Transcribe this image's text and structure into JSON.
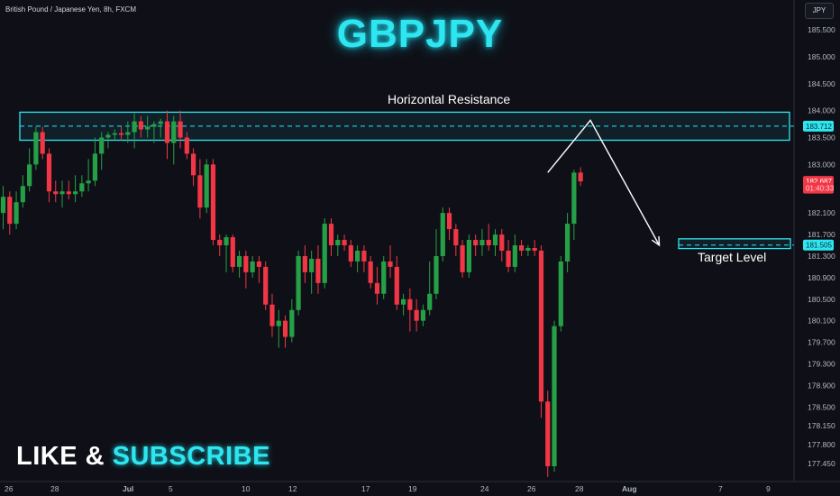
{
  "header": {
    "symbol_line": "British Pound / Japanese Yen, 8h, FXCM",
    "title": "GBPJPY",
    "currency_badge": "JPY"
  },
  "call_to_action": {
    "word1": "LIKE &",
    "word2": "SUBSCRIBE"
  },
  "annotations": {
    "resistance_label": "Horizontal Resistance",
    "target_label": "Target Level"
  },
  "colors": {
    "up": "#26a046",
    "down": "#f23645",
    "accent": "#2ee6f0",
    "background": "#0f1017",
    "axis_text": "#b2b5be"
  },
  "chart_data": {
    "type": "candlestick",
    "symbol": "GBPJPY",
    "timeframe": "8h",
    "y_axis": {
      "ticks": [
        "185.500",
        "185.000",
        "184.500",
        "184.000",
        "183.500",
        "183.000",
        "182.100",
        "181.700",
        "181.300",
        "180.900",
        "180.500",
        "180.100",
        "179.700",
        "179.300",
        "178.900",
        "178.500",
        "178.150",
        "177.800",
        "177.450"
      ],
      "tick_values": [
        185.5,
        185.0,
        184.5,
        184.0,
        183.5,
        183.0,
        182.1,
        181.7,
        181.3,
        180.9,
        180.5,
        180.1,
        179.7,
        179.3,
        178.9,
        178.5,
        178.15,
        177.8,
        177.45
      ]
    },
    "x_axis": {
      "ticks": [
        "26",
        "28",
        "Jul",
        "5",
        "10",
        "12",
        "17",
        "19",
        "24",
        "26",
        "28",
        "Aug",
        "7",
        "9"
      ]
    },
    "price_badges": [
      {
        "label": "183.712",
        "value": 183.712,
        "style": "accent"
      },
      {
        "label": "182.687",
        "value": 182.687,
        "style": "last"
      },
      {
        "label": "01:40:33",
        "value": 182.56,
        "style": "timer"
      },
      {
        "label": "181.505",
        "value": 181.505,
        "style": "accent"
      }
    ],
    "resistance_zone": {
      "low": 183.45,
      "high": 183.97,
      "level": 183.712,
      "label": "Horizontal Resistance"
    },
    "target_zone": {
      "low": 181.44,
      "high": 181.62,
      "level": 181.505,
      "label": "Target Level"
    },
    "projection_path": [
      {
        "bar": 83,
        "price": 182.85
      },
      {
        "bar": 89.5,
        "price": 183.82
      },
      {
        "bar": 100,
        "price": 181.5
      }
    ],
    "candles": [
      {
        "o": 182.1,
        "h": 182.6,
        "l": 181.8,
        "c": 182.4
      },
      {
        "o": 182.4,
        "h": 182.5,
        "l": 181.7,
        "c": 181.9
      },
      {
        "o": 181.9,
        "h": 182.5,
        "l": 181.8,
        "c": 182.3
      },
      {
        "o": 182.3,
        "h": 182.8,
        "l": 182.2,
        "c": 182.6
      },
      {
        "o": 182.6,
        "h": 183.3,
        "l": 182.5,
        "c": 183.0
      },
      {
        "o": 183.0,
        "h": 183.7,
        "l": 182.9,
        "c": 183.6
      },
      {
        "o": 183.6,
        "h": 183.7,
        "l": 183.1,
        "c": 183.2
      },
      {
        "o": 183.2,
        "h": 183.3,
        "l": 182.3,
        "c": 182.5
      },
      {
        "o": 182.5,
        "h": 182.7,
        "l": 182.3,
        "c": 182.45
      },
      {
        "o": 182.45,
        "h": 182.7,
        "l": 182.2,
        "c": 182.5
      },
      {
        "o": 182.5,
        "h": 182.7,
        "l": 182.35,
        "c": 182.45
      },
      {
        "o": 182.45,
        "h": 182.8,
        "l": 182.3,
        "c": 182.5
      },
      {
        "o": 182.5,
        "h": 182.8,
        "l": 182.4,
        "c": 182.65
      },
      {
        "o": 182.65,
        "h": 183.1,
        "l": 182.5,
        "c": 182.7
      },
      {
        "o": 182.7,
        "h": 183.5,
        "l": 182.6,
        "c": 183.2
      },
      {
        "o": 183.2,
        "h": 183.6,
        "l": 182.9,
        "c": 183.5
      },
      {
        "o": 183.5,
        "h": 183.6,
        "l": 183.3,
        "c": 183.55
      },
      {
        "o": 183.55,
        "h": 183.65,
        "l": 183.45,
        "c": 183.58
      },
      {
        "o": 183.58,
        "h": 183.7,
        "l": 183.45,
        "c": 183.55
      },
      {
        "o": 183.55,
        "h": 183.8,
        "l": 183.4,
        "c": 183.6
      },
      {
        "o": 183.6,
        "h": 183.95,
        "l": 183.3,
        "c": 183.8
      },
      {
        "o": 183.8,
        "h": 183.9,
        "l": 183.5,
        "c": 183.65
      },
      {
        "o": 183.65,
        "h": 183.9,
        "l": 183.5,
        "c": 183.7
      },
      {
        "o": 183.7,
        "h": 183.8,
        "l": 183.4,
        "c": 183.75
      },
      {
        "o": 183.75,
        "h": 183.85,
        "l": 183.5,
        "c": 183.8
      },
      {
        "o": 183.8,
        "h": 184.0,
        "l": 183.1,
        "c": 183.4
      },
      {
        "o": 183.4,
        "h": 183.9,
        "l": 183.0,
        "c": 183.8
      },
      {
        "o": 183.8,
        "h": 184.0,
        "l": 183.3,
        "c": 183.5
      },
      {
        "o": 183.5,
        "h": 183.6,
        "l": 183.1,
        "c": 183.2
      },
      {
        "o": 183.2,
        "h": 183.3,
        "l": 182.6,
        "c": 182.8
      },
      {
        "o": 182.8,
        "h": 183.1,
        "l": 182.0,
        "c": 182.2
      },
      {
        "o": 182.2,
        "h": 183.1,
        "l": 182.1,
        "c": 183.0
      },
      {
        "o": 183.0,
        "h": 183.1,
        "l": 181.5,
        "c": 181.6
      },
      {
        "o": 181.6,
        "h": 181.7,
        "l": 181.3,
        "c": 181.5
      },
      {
        "o": 181.5,
        "h": 181.7,
        "l": 181.0,
        "c": 181.65
      },
      {
        "o": 181.65,
        "h": 181.7,
        "l": 181.0,
        "c": 181.1
      },
      {
        "o": 181.1,
        "h": 181.4,
        "l": 180.9,
        "c": 181.3
      },
      {
        "o": 181.3,
        "h": 181.4,
        "l": 180.7,
        "c": 181.0
      },
      {
        "o": 181.0,
        "h": 181.3,
        "l": 180.9,
        "c": 181.2
      },
      {
        "o": 181.2,
        "h": 181.3,
        "l": 180.8,
        "c": 181.1
      },
      {
        "o": 181.1,
        "h": 181.2,
        "l": 180.3,
        "c": 180.4
      },
      {
        "o": 180.4,
        "h": 180.6,
        "l": 179.8,
        "c": 180.0
      },
      {
        "o": 180.0,
        "h": 180.3,
        "l": 179.6,
        "c": 180.1
      },
      {
        "o": 180.1,
        "h": 180.2,
        "l": 179.6,
        "c": 179.8
      },
      {
        "o": 179.8,
        "h": 180.5,
        "l": 179.7,
        "c": 180.3
      },
      {
        "o": 180.3,
        "h": 181.4,
        "l": 180.2,
        "c": 181.3
      },
      {
        "o": 181.3,
        "h": 181.5,
        "l": 180.8,
        "c": 181.0
      },
      {
        "o": 181.0,
        "h": 181.4,
        "l": 180.6,
        "c": 181.25
      },
      {
        "o": 181.25,
        "h": 181.5,
        "l": 180.6,
        "c": 180.8
      },
      {
        "o": 180.8,
        "h": 182.0,
        "l": 180.7,
        "c": 181.9
      },
      {
        "o": 181.9,
        "h": 182.0,
        "l": 181.3,
        "c": 181.5
      },
      {
        "o": 181.5,
        "h": 181.7,
        "l": 181.3,
        "c": 181.6
      },
      {
        "o": 181.6,
        "h": 181.7,
        "l": 181.4,
        "c": 181.5
      },
      {
        "o": 181.5,
        "h": 181.6,
        "l": 181.1,
        "c": 181.2
      },
      {
        "o": 181.2,
        "h": 181.5,
        "l": 181.0,
        "c": 181.4
      },
      {
        "o": 181.4,
        "h": 181.5,
        "l": 181.0,
        "c": 181.2
      },
      {
        "o": 181.2,
        "h": 181.3,
        "l": 180.7,
        "c": 180.8
      },
      {
        "o": 180.8,
        "h": 181.1,
        "l": 180.4,
        "c": 180.6
      },
      {
        "o": 180.6,
        "h": 181.3,
        "l": 180.5,
        "c": 181.2
      },
      {
        "o": 181.2,
        "h": 181.5,
        "l": 180.9,
        "c": 181.1
      },
      {
        "o": 181.1,
        "h": 181.3,
        "l": 180.3,
        "c": 180.4
      },
      {
        "o": 180.4,
        "h": 180.6,
        "l": 180.2,
        "c": 180.5
      },
      {
        "o": 180.5,
        "h": 180.7,
        "l": 179.9,
        "c": 180.3
      },
      {
        "o": 180.3,
        "h": 180.5,
        "l": 179.9,
        "c": 180.1
      },
      {
        "o": 180.1,
        "h": 180.4,
        "l": 180.0,
        "c": 180.3
      },
      {
        "o": 180.3,
        "h": 181.2,
        "l": 180.2,
        "c": 180.6
      },
      {
        "o": 180.6,
        "h": 181.8,
        "l": 180.5,
        "c": 181.3
      },
      {
        "o": 181.3,
        "h": 182.2,
        "l": 181.2,
        "c": 182.1
      },
      {
        "o": 182.1,
        "h": 182.2,
        "l": 181.6,
        "c": 181.8
      },
      {
        "o": 181.8,
        "h": 181.9,
        "l": 181.3,
        "c": 181.5
      },
      {
        "o": 181.5,
        "h": 181.6,
        "l": 180.9,
        "c": 181.0
      },
      {
        "o": 181.0,
        "h": 181.7,
        "l": 180.9,
        "c": 181.6
      },
      {
        "o": 181.6,
        "h": 181.7,
        "l": 181.3,
        "c": 181.5
      },
      {
        "o": 181.5,
        "h": 181.8,
        "l": 181.3,
        "c": 181.6
      },
      {
        "o": 181.6,
        "h": 181.9,
        "l": 181.4,
        "c": 181.5
      },
      {
        "o": 181.5,
        "h": 181.8,
        "l": 181.3,
        "c": 181.7
      },
      {
        "o": 181.7,
        "h": 181.8,
        "l": 181.2,
        "c": 181.4
      },
      {
        "o": 181.4,
        "h": 181.6,
        "l": 181.0,
        "c": 181.1
      },
      {
        "o": 181.1,
        "h": 181.7,
        "l": 181.0,
        "c": 181.5
      },
      {
        "o": 181.5,
        "h": 181.6,
        "l": 181.3,
        "c": 181.4
      },
      {
        "o": 181.4,
        "h": 181.5,
        "l": 181.3,
        "c": 181.45
      },
      {
        "o": 181.45,
        "h": 181.6,
        "l": 181.3,
        "c": 181.4
      },
      {
        "o": 181.4,
        "h": 181.5,
        "l": 178.3,
        "c": 178.6
      },
      {
        "o": 178.6,
        "h": 178.8,
        "l": 177.2,
        "c": 177.4
      },
      {
        "o": 177.4,
        "h": 180.1,
        "l": 177.3,
        "c": 180.0
      },
      {
        "o": 180.0,
        "h": 181.3,
        "l": 179.9,
        "c": 181.2
      },
      {
        "o": 181.2,
        "h": 182.1,
        "l": 181.0,
        "c": 181.9
      },
      {
        "o": 181.9,
        "h": 182.9,
        "l": 181.6,
        "c": 182.85
      },
      {
        "o": 182.85,
        "h": 182.95,
        "l": 182.6,
        "c": 182.687
      }
    ]
  }
}
